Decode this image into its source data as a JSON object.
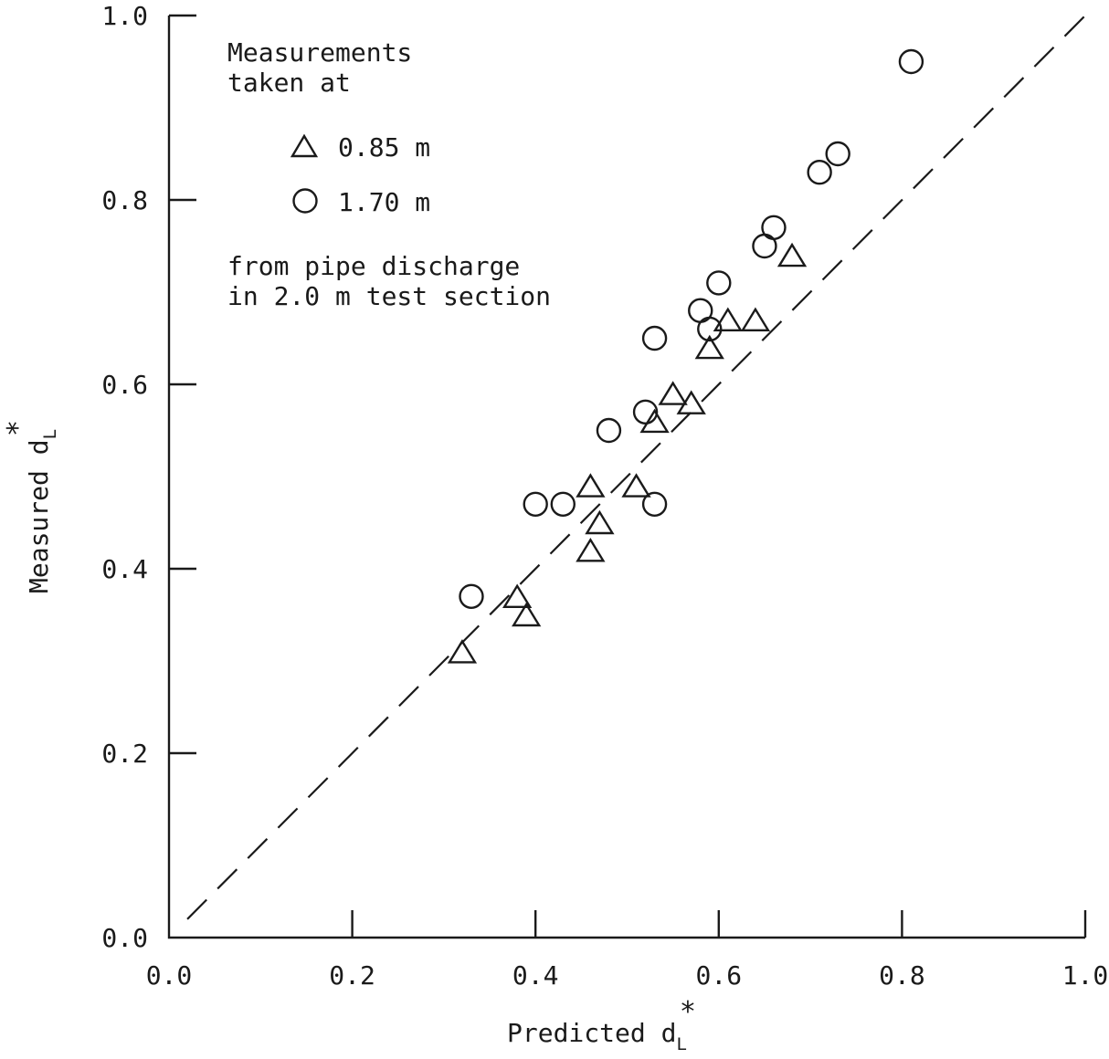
{
  "chart_data": {
    "type": "scatter",
    "xlabel": {
      "main": "Predicted d",
      "sub": "L",
      "sup": "*"
    },
    "ylabel": {
      "main": "Measured d",
      "sub": "L",
      "sup": "*"
    },
    "xlim": [
      0.0,
      1.0
    ],
    "ylim": [
      0.0,
      1.0
    ],
    "x_ticks": [
      "0.0",
      "0.2",
      "0.4",
      "0.6",
      "0.8",
      "1.0"
    ],
    "y_ticks": [
      "0.0",
      "0.2",
      "0.4",
      "0.6",
      "0.8",
      "1.0"
    ],
    "grid": false,
    "reference_line": {
      "style": "dashed",
      "from": [
        0.02,
        0.02
      ],
      "to": [
        1.0,
        1.0
      ]
    },
    "legend": {
      "placement": "top-left",
      "heading": [
        "Measurements",
        "taken at"
      ],
      "entries": [
        {
          "marker": "triangle",
          "label": "0.85 m"
        },
        {
          "marker": "circle",
          "label": "1.70 m"
        }
      ],
      "footer": [
        "from pipe discharge",
        "in 2.0 m test section"
      ]
    },
    "series": [
      {
        "name": "0.85 m",
        "marker": "triangle",
        "points": [
          [
            0.32,
            0.31
          ],
          [
            0.38,
            0.37
          ],
          [
            0.39,
            0.35
          ],
          [
            0.46,
            0.42
          ],
          [
            0.47,
            0.45
          ],
          [
            0.46,
            0.49
          ],
          [
            0.51,
            0.49
          ],
          [
            0.53,
            0.56
          ],
          [
            0.55,
            0.59
          ],
          [
            0.57,
            0.58
          ],
          [
            0.59,
            0.64
          ],
          [
            0.61,
            0.67
          ],
          [
            0.64,
            0.67
          ],
          [
            0.68,
            0.74
          ]
        ]
      },
      {
        "name": "1.70 m",
        "marker": "circle",
        "points": [
          [
            0.33,
            0.37
          ],
          [
            0.4,
            0.47
          ],
          [
            0.43,
            0.47
          ],
          [
            0.48,
            0.55
          ],
          [
            0.53,
            0.47
          ],
          [
            0.52,
            0.57
          ],
          [
            0.53,
            0.65
          ],
          [
            0.58,
            0.68
          ],
          [
            0.59,
            0.66
          ],
          [
            0.6,
            0.71
          ],
          [
            0.65,
            0.75
          ],
          [
            0.66,
            0.77
          ],
          [
            0.71,
            0.83
          ],
          [
            0.73,
            0.85
          ],
          [
            0.81,
            0.95
          ]
        ]
      }
    ]
  }
}
